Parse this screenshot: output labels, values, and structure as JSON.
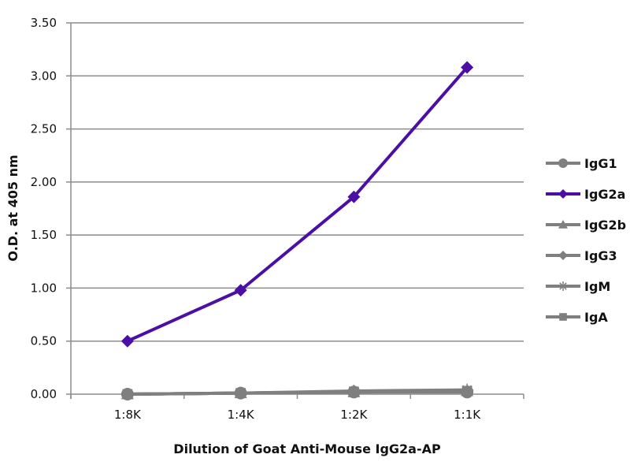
{
  "chart_data": {
    "type": "line",
    "title": "",
    "xlabel": "Dilution of Goat Anti-Mouse IgG2a-AP",
    "ylabel": "O.D. at 405 nm",
    "categories": [
      "1:8K",
      "1:4K",
      "1:2K",
      "1:1K"
    ],
    "ylim": [
      0,
      3.5
    ],
    "yticks": [
      "0.00",
      "0.50",
      "1.00",
      "1.50",
      "2.00",
      "2.50",
      "3.00",
      "3.50"
    ],
    "grid": true,
    "legend_position": "right",
    "series": [
      {
        "name": "IgG1",
        "marker": "circle",
        "color": "#7f7f7f",
        "values": [
          0.0,
          0.01,
          0.02,
          0.02
        ]
      },
      {
        "name": "IgG2a",
        "marker": "diamond",
        "color": "#4b0fa6",
        "values": [
          0.5,
          0.98,
          1.86,
          3.08
        ]
      },
      {
        "name": "IgG2b",
        "marker": "triangle",
        "color": "#7f7f7f",
        "values": [
          0.0,
          0.01,
          0.02,
          0.03
        ]
      },
      {
        "name": "IgG3",
        "marker": "diamond",
        "color": "#7f7f7f",
        "values": [
          0.0,
          0.01,
          0.02,
          0.03
        ]
      },
      {
        "name": "IgM",
        "marker": "star",
        "color": "#7f7f7f",
        "values": [
          0.0,
          0.01,
          0.03,
          0.04
        ]
      },
      {
        "name": "IgA",
        "marker": "square",
        "color": "#7f7f7f",
        "values": [
          0.0,
          0.01,
          0.02,
          0.03
        ]
      }
    ]
  }
}
